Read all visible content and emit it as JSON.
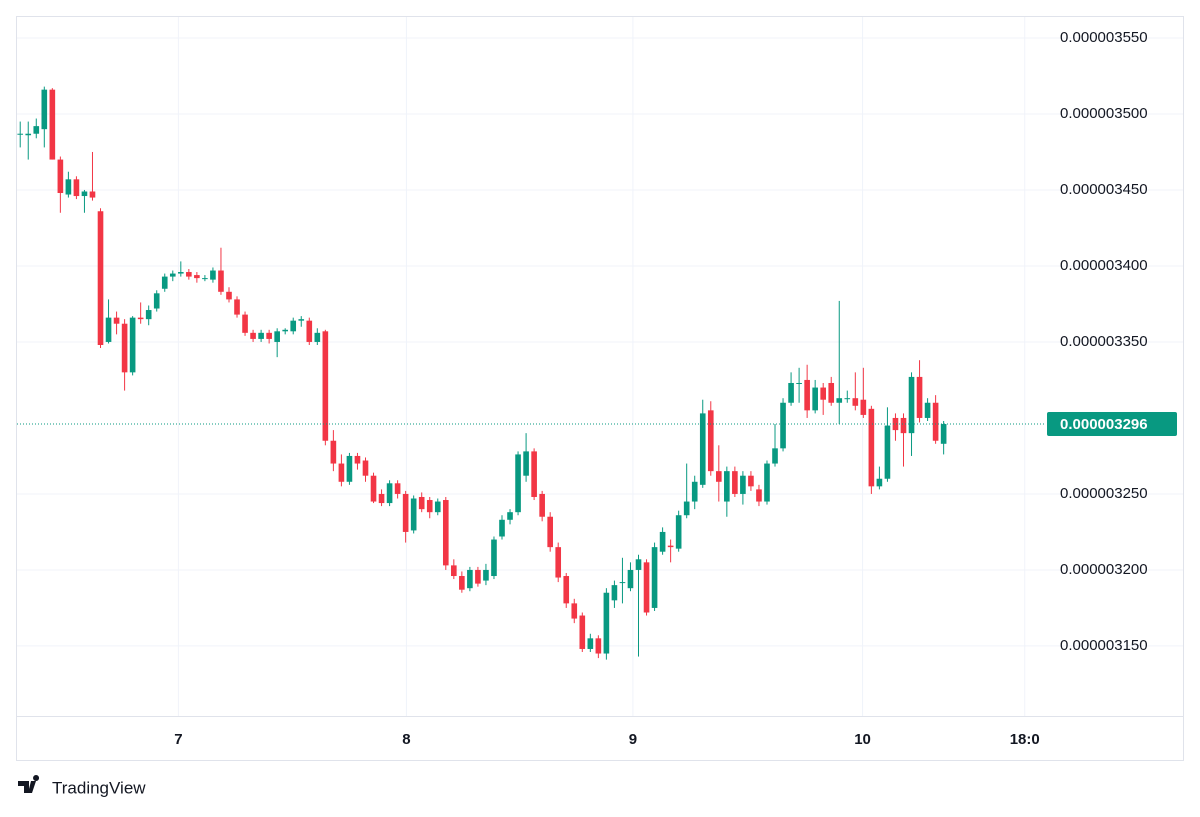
{
  "chart_data": {
    "type": "candlestick",
    "open": [
      3.487e-06,
      3.486e-06,
      3.487e-06,
      3.49e-06,
      3.516e-06,
      3.47e-06,
      3.447e-06,
      3.457e-06,
      3.446e-06,
      3.449e-06,
      3.436e-06,
      3.35e-06,
      3.366e-06,
      3.362e-06,
      3.33e-06,
      3.366e-06,
      3.365e-06,
      3.372e-06,
      3.385e-06,
      3.393e-06,
      3.395e-06,
      3.396e-06,
      3.394e-06,
      3.392e-06,
      3.391e-06,
      3.397e-06,
      3.383e-06,
      3.378e-06,
      3.368e-06,
      3.356e-06,
      3.352e-06,
      3.356e-06,
      3.35e-06,
      3.357e-06,
      3.357e-06,
      3.364e-06,
      3.364e-06,
      3.35e-06,
      3.357e-06,
      3.285e-06,
      3.27e-06,
      3.258e-06,
      3.275e-06,
      3.272e-06,
      3.262e-06,
      3.25e-06,
      3.244e-06,
      3.257e-06,
      3.25e-06,
      3.226e-06,
      3.248e-06,
      3.246e-06,
      3.238e-06,
      3.246e-06,
      3.203e-06,
      3.196e-06,
      3.188e-06,
      3.2e-06,
      3.193e-06,
      3.196e-06,
      3.222e-06,
      3.233e-06,
      3.238e-06,
      3.262e-06,
      3.278e-06,
      3.25e-06,
      3.235e-06,
      3.215e-06,
      3.196e-06,
      3.178e-06,
      3.17e-06,
      3.148e-06,
      3.155e-06,
      3.145e-06,
      3.18e-06,
      3.192e-06,
      3.188e-06,
      3.2e-06,
      3.205e-06,
      3.175e-06,
      3.212e-06,
      3.216e-06,
      3.214e-06,
      3.236e-06,
      3.245e-06,
      3.256e-06,
      3.305e-06,
      3.265e-06,
      3.245e-06,
      3.265e-06,
      3.25e-06,
      3.262e-06,
      3.253e-06,
      3.245e-06,
      3.27e-06,
      3.28e-06,
      3.31e-06,
      3.323e-06,
      3.325e-06,
      3.305e-06,
      3.32e-06,
      3.323e-06,
      3.31e-06,
      3.313e-06,
      3.313e-06,
      3.312e-06,
      3.306e-06,
      3.255e-06,
      3.26e-06,
      3.3e-06,
      3.3e-06,
      3.29e-06,
      3.327e-06,
      3.3e-06,
      3.31e-06,
      3.283e-06
    ],
    "high": [
      3.495e-06,
      3.495e-06,
      3.497e-06,
      3.518e-06,
      3.517e-06,
      3.472e-06,
      3.462e-06,
      3.459e-06,
      3.45e-06,
      3.475e-06,
      3.438e-06,
      3.378e-06,
      3.37e-06,
      3.365e-06,
      3.367e-06,
      3.376e-06,
      3.374e-06,
      3.384e-06,
      3.395e-06,
      3.397e-06,
      3.403e-06,
      3.398e-06,
      3.396e-06,
      3.394e-06,
      3.399e-06,
      3.412e-06,
      3.386e-06,
      3.38e-06,
      3.37e-06,
      3.358e-06,
      3.358e-06,
      3.358e-06,
      3.359e-06,
      3.359e-06,
      3.366e-06,
      3.367e-06,
      3.366e-06,
      3.359e-06,
      3.358e-06,
      3.292e-06,
      3.276e-06,
      3.277e-06,
      3.277e-06,
      3.274e-06,
      3.264e-06,
      3.253e-06,
      3.259e-06,
      3.259e-06,
      3.252e-06,
      3.249e-06,
      3.251e-06,
      3.248e-06,
      3.247e-06,
      3.248e-06,
      3.207e-06,
      3.199e-06,
      3.202e-06,
      3.202e-06,
      3.204e-06,
      3.222e-06,
      3.236e-06,
      3.24e-06,
      3.278e-06,
      3.29e-06,
      3.28e-06,
      3.252e-06,
      3.238e-06,
      3.218e-06,
      3.198e-06,
      3.181e-06,
      3.172e-06,
      3.158e-06,
      3.157e-06,
      3.188e-06,
      3.193e-06,
      3.208e-06,
      3.205e-06,
      3.21e-06,
      3.207e-06,
      3.218e-06,
      3.228e-06,
      3.22e-06,
      3.239e-06,
      3.27e-06,
      3.262e-06,
      3.312e-06,
      3.311e-06,
      3.282e-06,
      3.268e-06,
      3.268e-06,
      3.265e-06,
      3.265e-06,
      3.256e-06,
      3.272e-06,
      3.296e-06,
      3.313e-06,
      3.33e-06,
      3.333e-06,
      3.335e-06,
      3.325e-06,
      3.323e-06,
      3.327e-06,
      3.377e-06,
      3.318e-06,
      3.33e-06,
      3.333e-06,
      3.308e-06,
      3.268e-06,
      3.307e-06,
      3.303e-06,
      3.303e-06,
      3.33e-06,
      3.338e-06,
      3.313e-06,
      3.315e-06,
      3.298e-06
    ],
    "low": [
      3.478e-06,
      3.47e-06,
      3.484e-06,
      3.478e-06,
      3.47e-06,
      3.435e-06,
      3.445e-06,
      3.444e-06,
      3.435e-06,
      3.443e-06,
      3.346e-06,
      3.349e-06,
      3.355e-06,
      3.318e-06,
      3.328e-06,
      3.362e-06,
      3.361e-06,
      3.37e-06,
      3.383e-06,
      3.39e-06,
      3.393e-06,
      3.391e-06,
      3.389e-06,
      3.39e-06,
      3.389e-06,
      3.381e-06,
      3.376e-06,
      3.366e-06,
      3.354e-06,
      3.35e-06,
      3.35e-06,
      3.349e-06,
      3.34e-06,
      3.355e-06,
      3.355e-06,
      3.36e-06,
      3.348e-06,
      3.348e-06,
      3.282e-06,
      3.265e-06,
      3.255e-06,
      3.256e-06,
      3.266e-06,
      3.258e-06,
      3.244e-06,
      3.242e-06,
      3.242e-06,
      3.247e-06,
      3.218e-06,
      3.224e-06,
      3.238e-06,
      3.234e-06,
      3.236e-06,
      3.2e-06,
      3.194e-06,
      3.185e-06,
      3.186e-06,
      3.189e-06,
      3.19e-06,
      3.194e-06,
      3.22e-06,
      3.23e-06,
      3.236e-06,
      3.258e-06,
      3.246e-06,
      3.232e-06,
      3.212e-06,
      3.192e-06,
      3.175e-06,
      3.165e-06,
      3.146e-06,
      3.146e-06,
      3.142e-06,
      3.141e-06,
      3.175e-06,
      3.178e-06,
      3.186e-06,
      3.143e-06,
      3.17e-06,
      3.173e-06,
      3.21e-06,
      3.205e-06,
      3.212e-06,
      3.234e-06,
      3.24e-06,
      3.254e-06,
      3.262e-06,
      3.245e-06,
      3.235e-06,
      3.248e-06,
      3.243e-06,
      3.252e-06,
      3.242e-06,
      3.243e-06,
      3.268e-06,
      3.278e-06,
      3.308e-06,
      3.31e-06,
      3.3e-06,
      3.303e-06,
      3.302e-06,
      3.308e-06,
      3.296e-06,
      3.31e-06,
      3.305e-06,
      3.3e-06,
      3.25e-06,
      3.253e-06,
      3.258e-06,
      3.285e-06,
      3.268e-06,
      3.275e-06,
      3.297e-06,
      3.298e-06,
      3.283e-06,
      3.276e-06
    ],
    "close": [
      3.487e-06,
      3.487e-06,
      3.492e-06,
      3.516e-06,
      3.47e-06,
      3.448e-06,
      3.457e-06,
      3.446e-06,
      3.449e-06,
      3.445e-06,
      3.348e-06,
      3.366e-06,
      3.362e-06,
      3.33e-06,
      3.366e-06,
      3.365e-06,
      3.371e-06,
      3.382e-06,
      3.393e-06,
      3.395e-06,
      3.396e-06,
      3.393e-06,
      3.392e-06,
      3.392e-06,
      3.397e-06,
      3.383e-06,
      3.378e-06,
      3.368e-06,
      3.356e-06,
      3.352e-06,
      3.356e-06,
      3.352e-06,
      3.357e-06,
      3.358e-06,
      3.364e-06,
      3.365e-06,
      3.35e-06,
      3.356e-06,
      3.285e-06,
      3.27e-06,
      3.258e-06,
      3.275e-06,
      3.27e-06,
      3.262e-06,
      3.245e-06,
      3.244e-06,
      3.257e-06,
      3.25e-06,
      3.225e-06,
      3.247e-06,
      3.24e-06,
      3.238e-06,
      3.245e-06,
      3.203e-06,
      3.196e-06,
      3.187e-06,
      3.2e-06,
      3.191e-06,
      3.2e-06,
      3.22e-06,
      3.233e-06,
      3.238e-06,
      3.276e-06,
      3.278e-06,
      3.248e-06,
      3.235e-06,
      3.215e-06,
      3.195e-06,
      3.178e-06,
      3.168e-06,
      3.148e-06,
      3.155e-06,
      3.145e-06,
      3.185e-06,
      3.19e-06,
      3.192e-06,
      3.2e-06,
      3.207e-06,
      3.172e-06,
      3.215e-06,
      3.225e-06,
      3.215e-06,
      3.236e-06,
      3.245e-06,
      3.258e-06,
      3.303e-06,
      3.265e-06,
      3.258e-06,
      3.265e-06,
      3.25e-06,
      3.262e-06,
      3.255e-06,
      3.245e-06,
      3.27e-06,
      3.28e-06,
      3.31e-06,
      3.323e-06,
      3.323e-06,
      3.305e-06,
      3.32e-06,
      3.312e-06,
      3.31e-06,
      3.313e-06,
      3.313e-06,
      3.308e-06,
      3.302e-06,
      3.255e-06,
      3.26e-06,
      3.295e-06,
      3.292e-06,
      3.29e-06,
      3.327e-06,
      3.3e-06,
      3.31e-06,
      3.285e-06,
      3.296e-06
    ],
    "up_color": "#089981",
    "down_color": "#f23645",
    "xlim": [
      -0.4,
      127
    ],
    "xticks": [
      {
        "value": 19.7,
        "label": "7"
      },
      {
        "value": 48.1,
        "label": "8"
      },
      {
        "value": 76.3,
        "label": "9"
      },
      {
        "value": 104.9,
        "label": "10"
      },
      {
        "value": 125.1,
        "label": "18:0"
      }
    ],
    "ylim": [
      3.1039e-06,
      3.5638e-06
    ],
    "yticks": [
      {
        "value": 3.55e-06,
        "label": "0.000003550"
      },
      {
        "value": 3.5e-06,
        "label": "0.000003500"
      },
      {
        "value": 3.45e-06,
        "label": "0.000003450"
      },
      {
        "value": 3.4e-06,
        "label": "0.000003400"
      },
      {
        "value": 3.35e-06,
        "label": "0.000003350"
      },
      {
        "value": 3.25e-06,
        "label": "0.000003250"
      },
      {
        "value": 3.2e-06,
        "label": "0.000003200"
      },
      {
        "value": 3.15e-06,
        "label": "0.000003150"
      }
    ],
    "last_price": {
      "value": 3.296e-06,
      "label": "0.000003296"
    },
    "grid": true
  },
  "footer": {
    "brand": "TradingView"
  }
}
